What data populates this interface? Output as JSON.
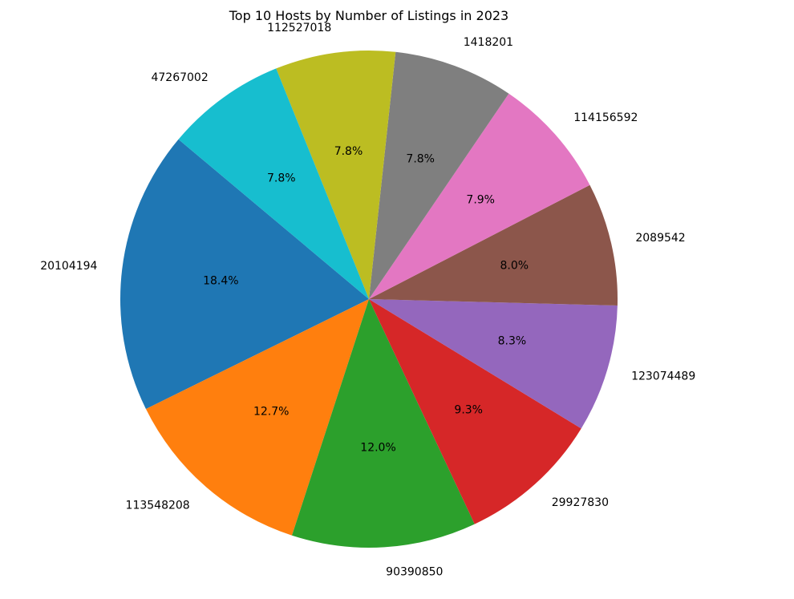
{
  "chart_data": {
    "type": "pie",
    "title": "Top 10 Hosts by Number of Listings in 2023",
    "categories": [
      "20104194",
      "113548208",
      "90390850",
      "29927830",
      "123074489",
      "2089542",
      "114156592",
      "1418201",
      "112527018",
      "47267002"
    ],
    "values": [
      18.4,
      12.7,
      12.0,
      9.3,
      8.3,
      8.0,
      7.9,
      7.8,
      7.8,
      7.8
    ],
    "value_labels": [
      "18.4%",
      "12.7%",
      "12.0%",
      "9.3%",
      "8.3%",
      "8.0%",
      "7.9%",
      "7.8%",
      "7.8%",
      "7.8%"
    ],
    "colors": [
      "#1f77b4",
      "#ff7f0e",
      "#2ca02c",
      "#d62728",
      "#9467bd",
      "#8c564b",
      "#e377c2",
      "#7f7f7f",
      "#bcbd22",
      "#17becf"
    ],
    "start_angle_deg": 140,
    "direction": "counterclockwise",
    "legend": "none"
  }
}
